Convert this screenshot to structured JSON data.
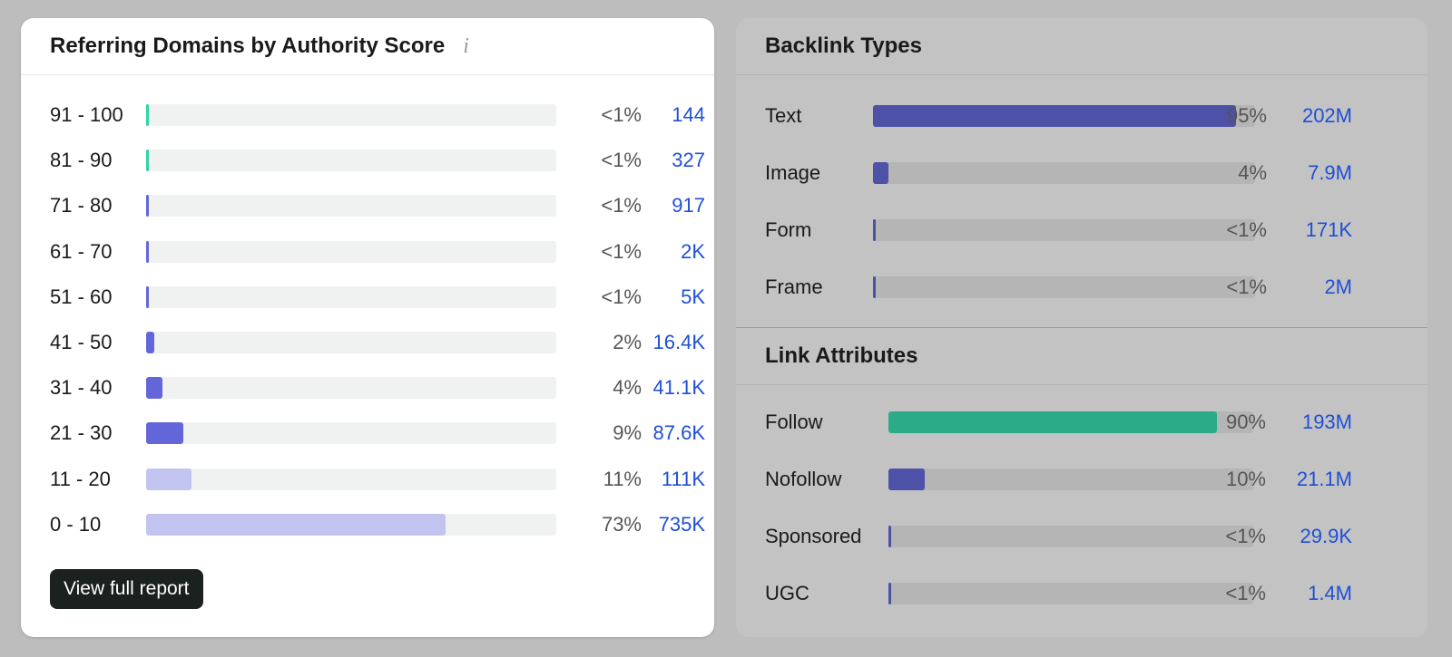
{
  "referring_domains": {
    "title": "Referring Domains by Authority Score",
    "info_icon": "i",
    "rows": [
      {
        "label": "91 - 100",
        "pct": "<1%",
        "value": "144",
        "fill": 0.004,
        "color": "#2dd4a7"
      },
      {
        "label": "81 - 90",
        "pct": "<1%",
        "value": "327",
        "fill": 0.004,
        "color": "#2dd4a7"
      },
      {
        "label": "71 - 80",
        "pct": "<1%",
        "value": "917",
        "fill": 0.004,
        "color": "#6366d9"
      },
      {
        "label": "61 - 70",
        "pct": "<1%",
        "value": "2K",
        "fill": 0.004,
        "color": "#6366d9"
      },
      {
        "label": "51 - 60",
        "pct": "<1%",
        "value": "5K",
        "fill": 0.004,
        "color": "#6366d9"
      },
      {
        "label": "41 - 50",
        "pct": "2%",
        "value": "16.4K",
        "fill": 0.02,
        "color": "#6366d9"
      },
      {
        "label": "31 - 40",
        "pct": "4%",
        "value": "41.1K",
        "fill": 0.04,
        "color": "#6366d9"
      },
      {
        "label": "21 - 30",
        "pct": "9%",
        "value": "87.6K",
        "fill": 0.09,
        "color": "#6366d9"
      },
      {
        "label": "11 - 20",
        "pct": "11%",
        "value": "111K",
        "fill": 0.11,
        "color": "#c3c3f0"
      },
      {
        "label": "0 - 10",
        "pct": "73%",
        "value": "735K",
        "fill": 0.73,
        "color": "#c3c3f0"
      }
    ],
    "button_label": "View full report"
  },
  "backlink_types": {
    "title": "Backlink Types",
    "rows": [
      {
        "label": "Text",
        "pct": "95%",
        "value": "202M",
        "fill": 0.95,
        "color": "#4e51a8"
      },
      {
        "label": "Image",
        "pct": "4%",
        "value": "7.9M",
        "fill": 0.04,
        "color": "#4e51a8"
      },
      {
        "label": "Form",
        "pct": "<1%",
        "value": "171K",
        "fill": 0.004,
        "color": "#4e51a8"
      },
      {
        "label": "Frame",
        "pct": "<1%",
        "value": "2M",
        "fill": 0.004,
        "color": "#4e51a8"
      }
    ]
  },
  "link_attributes": {
    "title": "Link Attributes",
    "rows": [
      {
        "label": "Follow",
        "pct": "90%",
        "value": "193M",
        "fill": 0.9,
        "color": "#2bab88"
      },
      {
        "label": "Nofollow",
        "pct": "10%",
        "value": "21.1M",
        "fill": 0.1,
        "color": "#4e51a8"
      },
      {
        "label": "Sponsored",
        "pct": "<1%",
        "value": "29.9K",
        "fill": 0.004,
        "color": "#4e51a8"
      },
      {
        "label": "UGC",
        "pct": "<1%",
        "value": "1.4M",
        "fill": 0.004,
        "color": "#4e51a8"
      }
    ]
  }
}
